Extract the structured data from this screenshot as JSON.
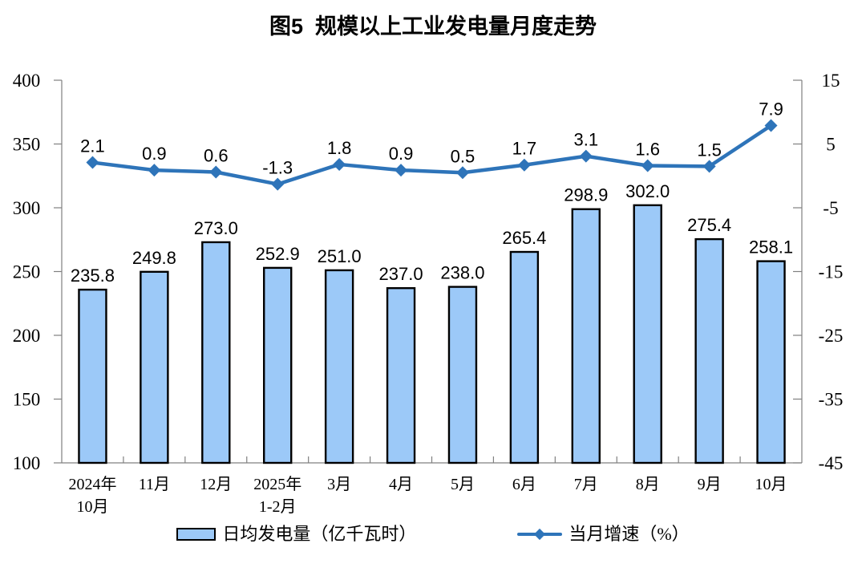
{
  "title": "图5  规模以上工业发电量月度走势",
  "colors": {
    "background": "#FFFFFF",
    "bar_fill": "#9CC9F8",
    "bar_border": "#000000",
    "line": "#2E74B9",
    "axis": "#808080",
    "label_text": "#000000"
  },
  "legend": {
    "bar_label": "日均发电量（亿千瓦时）",
    "line_label": "当月增速（%）"
  },
  "chart_data": {
    "type": "combo-bar-line",
    "title": "图5 规模以上工业发电量月度走势",
    "categories": [
      "2024年\n10月",
      "11月",
      "12月",
      "2025年\n1-2月",
      "3月",
      "4月",
      "5月",
      "6月",
      "7月",
      "8月",
      "9月",
      "10月"
    ],
    "series": [
      {
        "name": "日均发电量（亿千瓦时）",
        "type": "bar",
        "axis": "left",
        "values": [
          235.8,
          249.8,
          273.0,
          252.9,
          251.0,
          237.0,
          238.0,
          265.4,
          298.9,
          302.0,
          275.4,
          258.1
        ]
      },
      {
        "name": "当月增速（%）",
        "type": "line",
        "axis": "right",
        "values": [
          2.1,
          0.9,
          0.6,
          -1.3,
          1.8,
          0.9,
          0.5,
          1.7,
          3.1,
          1.6,
          1.5,
          7.9
        ]
      }
    ],
    "left_axis": {
      "min": 100,
      "max": 400,
      "step": 50
    },
    "right_axis": {
      "min": -45,
      "max": 15,
      "step": 10
    },
    "grid": false,
    "data_labels": true,
    "label_decimals": 1,
    "legend_position": "bottom"
  }
}
